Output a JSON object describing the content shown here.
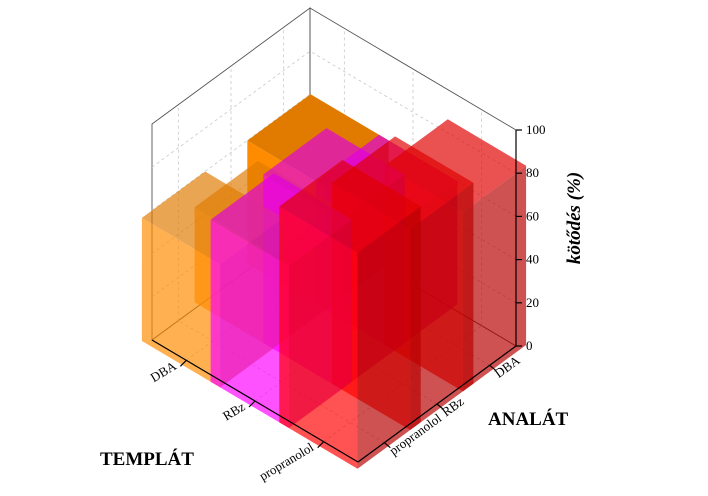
{
  "chart_data": {
    "type": "bar3d",
    "templat_axis_label": "TEMPLÁT",
    "analat_axis_label": "ANALÁT",
    "zlabel": "kötődés (%)",
    "zlim": [
      0,
      100
    ],
    "zticks": [
      "0",
      "20",
      "40",
      "60",
      "80",
      "100"
    ],
    "templat_categories": [
      "propranolol",
      "RBz",
      "DBA"
    ],
    "analat_categories": [
      "propranolol",
      "RBz",
      "DBA"
    ],
    "grid": true,
    "series": [
      {
        "templat": "propranolol",
        "color": "#ff0000",
        "values": [
          {
            "analat": "propranolol",
            "value": 100
          },
          {
            "analat": "RBz",
            "value": 93
          },
          {
            "analat": "DBA",
            "value": 83
          }
        ]
      },
      {
        "templat": "RBz",
        "color": "#ff00ff",
        "values": [
          {
            "analat": "propranolol",
            "value": 75
          },
          {
            "analat": "RBz",
            "value": 78
          },
          {
            "analat": "DBA",
            "value": 57
          }
        ]
      },
      {
        "templat": "DBA",
        "color": "#ff8c00",
        "values": [
          {
            "analat": "propranolol",
            "value": 57
          },
          {
            "analat": "RBz",
            "value": 44
          },
          {
            "analat": "DBA",
            "value": 57
          }
        ]
      }
    ]
  }
}
